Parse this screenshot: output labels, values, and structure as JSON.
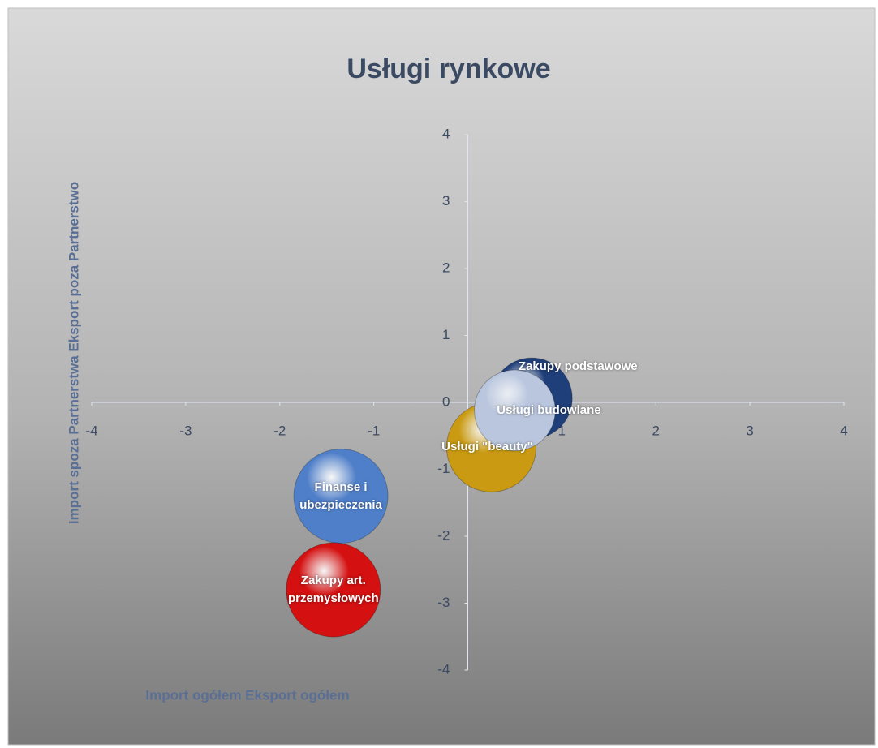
{
  "chart_data": {
    "type": "bubble",
    "title": "Usługi rynkowe",
    "x_label": "Import ogółem Eksport ogółem",
    "y_label": "Import spoza Partnerstwa Eksport poza Partnerstwo",
    "xlim": [
      -4,
      4
    ],
    "xticks": [
      -4,
      -3,
      -2,
      -1,
      0,
      1,
      2,
      3,
      4
    ],
    "ylim": [
      -4,
      4
    ],
    "yticks": [
      -4,
      -3,
      -2,
      -1,
      0,
      1,
      2,
      3,
      4
    ],
    "series": [
      {
        "name": "Zakupy podstawowe",
        "color": "#1f3f7a",
        "x": [
          0.68
        ],
        "values": [
          0.06
        ],
        "sizes": [
          0.86
        ]
      },
      {
        "name": "Usługi \"beauty\"",
        "color": "#c99a12",
        "x": [
          0.25
        ],
        "values": [
          -0.67
        ],
        "sizes": [
          0.95
        ]
      },
      {
        "name": "Usługi budowlane",
        "color": "#b9c6de",
        "x": [
          0.5
        ],
        "values": [
          -0.12
        ],
        "sizes": [
          0.86
        ]
      },
      {
        "name": "Finanse i ubezpieczenia",
        "color": "#4f7fc9",
        "x": [
          -1.35
        ],
        "values": [
          -1.4
        ],
        "sizes": [
          1.0
        ]
      },
      {
        "name": "Zakupy art. przemysłowych",
        "color": "#d41010",
        "x": [
          -1.43
        ],
        "values": [
          -2.8
        ],
        "sizes": [
          1.0
        ]
      }
    ]
  }
}
